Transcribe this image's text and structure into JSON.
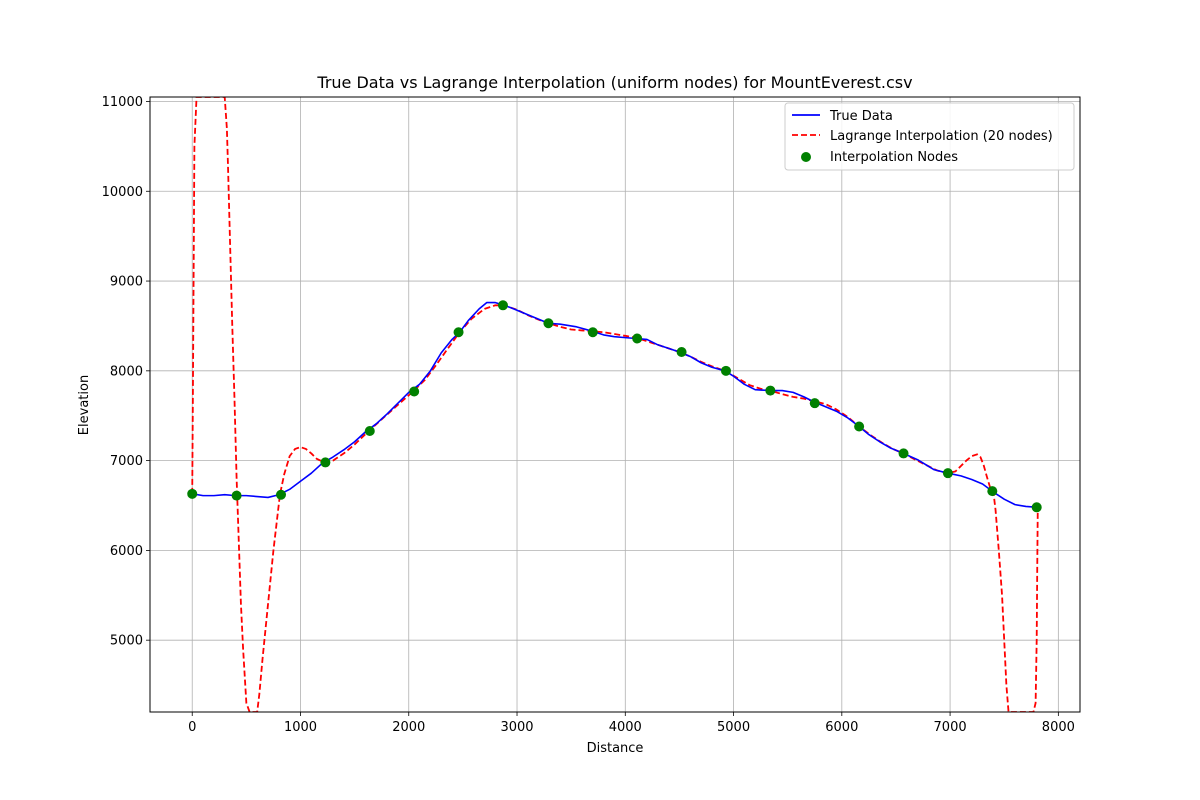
{
  "chart_data": {
    "type": "line",
    "title": "True Data vs Lagrange Interpolation (uniform nodes) for MountEverest.csv",
    "xlabel": "Distance",
    "ylabel": "Elevation",
    "xlim": [
      -390,
      8200
    ],
    "ylim": [
      4200,
      11050
    ],
    "x_ticks": [
      0,
      1000,
      2000,
      3000,
      4000,
      5000,
      6000,
      7000,
      8000
    ],
    "y_ticks": [
      5000,
      6000,
      7000,
      8000,
      9000,
      10000,
      11000
    ],
    "grid": true,
    "legend_position": "top-right",
    "series": [
      {
        "name": "True Data",
        "style": "solid",
        "color": "#0000ff",
        "x": [
          0,
          100,
          200,
          300,
          400,
          500,
          600,
          700,
          800,
          900,
          1000,
          1100,
          1200,
          1300,
          1400,
          1500,
          1600,
          1700,
          1800,
          1900,
          2000,
          2100,
          2200,
          2300,
          2400,
          2470,
          2550,
          2650,
          2720,
          2800,
          2880,
          2950,
          3050,
          3150,
          3290,
          3400,
          3550,
          3700,
          3800,
          3900,
          4000,
          4100,
          4200,
          4300,
          4400,
          4500,
          4600,
          4700,
          4800,
          4920,
          5000,
          5100,
          5200,
          5340,
          5450,
          5550,
          5650,
          5750,
          5850,
          5950,
          6050,
          6160,
          6250,
          6350,
          6450,
          6570,
          6700,
          6850,
          6980,
          7100,
          7200,
          7300,
          7400,
          7500,
          7600,
          7700,
          7810
        ],
        "values": [
          6630,
          6610,
          6610,
          6620,
          6610,
          6610,
          6600,
          6590,
          6620,
          6680,
          6770,
          6860,
          6970,
          7040,
          7120,
          7210,
          7320,
          7410,
          7520,
          7640,
          7760,
          7850,
          8000,
          8200,
          8350,
          8430,
          8560,
          8690,
          8760,
          8760,
          8730,
          8700,
          8650,
          8600,
          8530,
          8520,
          8490,
          8440,
          8400,
          8380,
          8370,
          8360,
          8350,
          8290,
          8250,
          8210,
          8160,
          8090,
          8040,
          8000,
          7940,
          7850,
          7790,
          7780,
          7780,
          7760,
          7710,
          7650,
          7600,
          7550,
          7480,
          7380,
          7290,
          7210,
          7140,
          7080,
          7010,
          6900,
          6860,
          6830,
          6790,
          6740,
          6650,
          6570,
          6510,
          6490,
          6480
        ]
      },
      {
        "name": "Lagrange Interpolation (20 nodes)",
        "style": "dashed",
        "color": "#ff0000",
        "x": [
          0,
          5,
          10,
          15,
          20,
          40,
          80,
          140,
          200,
          260,
          300,
          320,
          330,
          350,
          370,
          390,
          410,
          430,
          450,
          470,
          500,
          530,
          560,
          580,
          600,
          620,
          650,
          700,
          750,
          810,
          850,
          900,
          950,
          1000,
          1050,
          1100,
          1150,
          1220,
          1300,
          1400,
          1500,
          1630,
          1750,
          1880,
          2040,
          2150,
          2250,
          2350,
          2470,
          2580,
          2700,
          2800,
          2880,
          3000,
          3100,
          3200,
          3290,
          3400,
          3500,
          3600,
          3700,
          3800,
          3900,
          4000,
          4090,
          4200,
          4300,
          4400,
          4500,
          4600,
          4700,
          4800,
          4920,
          5050,
          5150,
          5250,
          5340,
          5450,
          5550,
          5650,
          5750,
          5850,
          5950,
          6050,
          6160,
          6270,
          6370,
          6470,
          6570,
          6680,
          6780,
          6880,
          6980,
          7050,
          7100,
          7150,
          7200,
          7250,
          7280,
          7310,
          7340,
          7370,
          7400,
          7420,
          7450,
          7480,
          7500,
          7520,
          7540,
          7560,
          7580,
          7620,
          7680,
          7740,
          7770,
          7790,
          7800,
          7805,
          7810
        ],
        "values": [
          6630,
          7500,
          8500,
          9500,
          10500,
          11050,
          11050,
          11050,
          11050,
          11050,
          11050,
          10700,
          10300,
          9400,
          8500,
          7700,
          6800,
          6100,
          5400,
          4900,
          4300,
          4200,
          4200,
          4200,
          4200,
          4400,
          4800,
          5400,
          6000,
          6620,
          6850,
          7050,
          7130,
          7150,
          7130,
          7080,
          7020,
          6980,
          7000,
          7080,
          7180,
          7330,
          7460,
          7600,
          7770,
          7900,
          8060,
          8230,
          8430,
          8580,
          8690,
          8730,
          8730,
          8680,
          8620,
          8570,
          8530,
          8490,
          8460,
          8450,
          8440,
          8430,
          8410,
          8390,
          8370,
          8330,
          8290,
          8250,
          8210,
          8160,
          8100,
          8050,
          8000,
          7910,
          7840,
          7800,
          7780,
          7740,
          7710,
          7690,
          7660,
          7630,
          7570,
          7490,
          7380,
          7280,
          7200,
          7130,
          7080,
          7010,
          6950,
          6890,
          6860,
          6880,
          6940,
          7000,
          7050,
          7070,
          7040,
          6950,
          6820,
          6700,
          6650,
          6450,
          6000,
          5500,
          5000,
          4500,
          4200,
          4200,
          4200,
          4200,
          4200,
          4200,
          4200,
          4300,
          5000,
          5800,
          6480
        ]
      },
      {
        "name": "Interpolation Nodes",
        "style": "markers",
        "color": "#008000",
        "x": [
          0,
          410,
          820,
          1230,
          1640,
          2050,
          2460,
          2870,
          3290,
          3700,
          4110,
          4520,
          4930,
          5340,
          5750,
          6160,
          6570,
          6980,
          7390,
          7800
        ],
        "values": [
          6630,
          6610,
          6620,
          6980,
          7330,
          7770,
          8430,
          8730,
          8530,
          8430,
          8360,
          8210,
          8000,
          7780,
          7640,
          7380,
          7080,
          6860,
          6660,
          6480
        ]
      }
    ]
  }
}
